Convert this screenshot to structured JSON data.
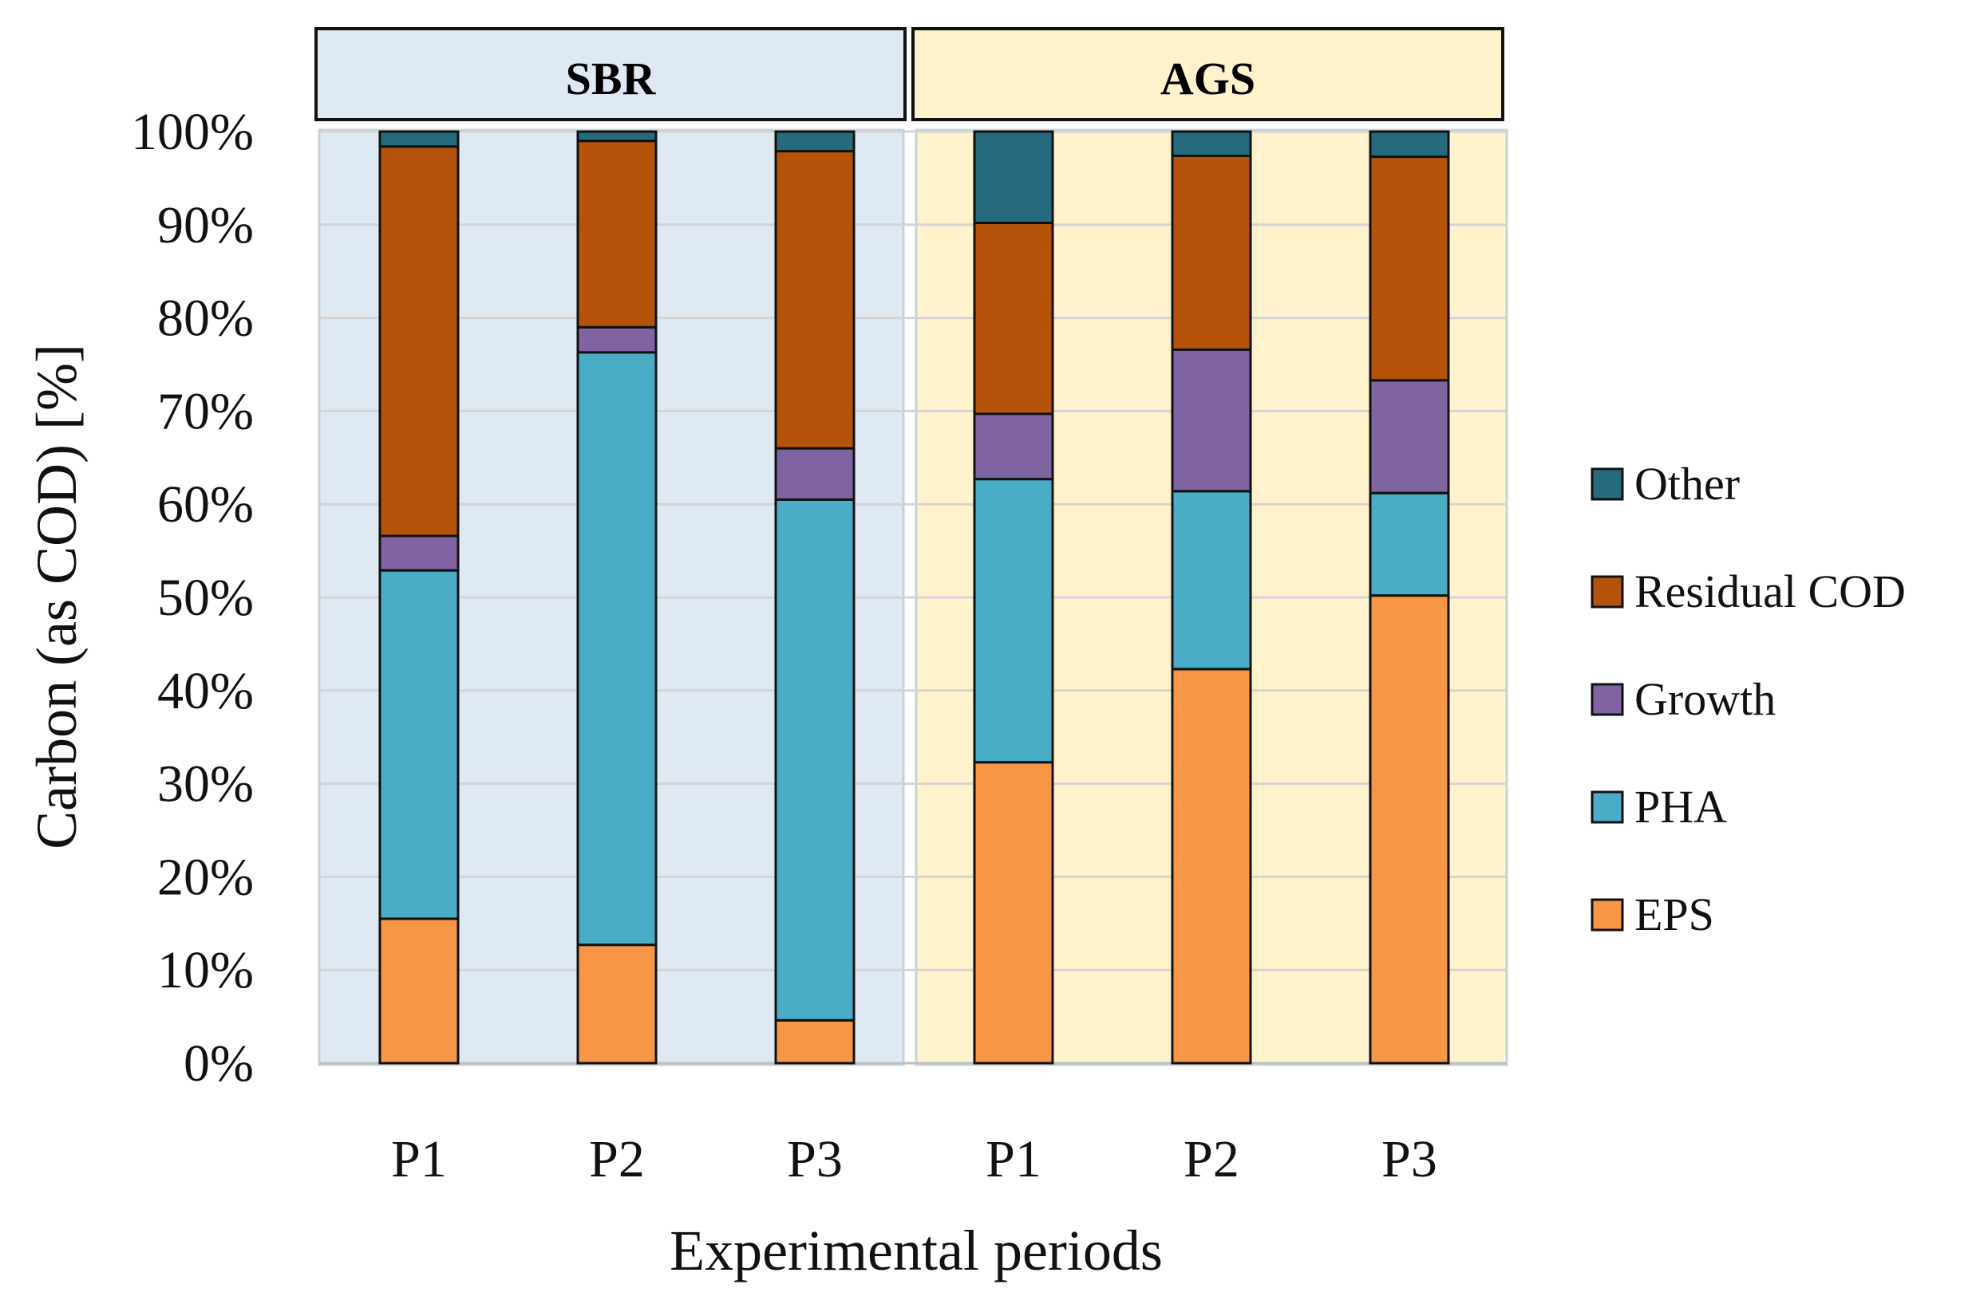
{
  "chart_data": {
    "type": "bar",
    "stacked": true,
    "title": "",
    "xlabel": "Experimental periods",
    "ylabel": "Carbon (as COD) [%]",
    "ylim": [
      0,
      100
    ],
    "yticks": [
      "0%",
      "10%",
      "20%",
      "30%",
      "40%",
      "50%",
      "60%",
      "70%",
      "80%",
      "90%",
      "100%"
    ],
    "grid": true,
    "legend_position": "right",
    "groups": [
      {
        "name": "SBR",
        "color": "#dfe9f4",
        "categories": [
          "P1",
          "P2",
          "P3"
        ]
      },
      {
        "name": "AGS",
        "color": "#fff2cc",
        "categories": [
          "P1",
          "P2",
          "P3"
        ]
      }
    ],
    "categories": [
      "P1",
      "P2",
      "P3",
      "P1",
      "P2",
      "P3"
    ],
    "series": [
      {
        "name": "EPS",
        "color": "#f79646",
        "values": [
          15.5,
          12.7,
          4.6,
          32.3,
          42.3,
          50.2
        ]
      },
      {
        "name": "PHA",
        "color": "#4bacc6",
        "values": [
          37.4,
          63.6,
          55.9,
          30.4,
          19.1,
          11.0
        ]
      },
      {
        "name": "Growth",
        "color": "#8064a2",
        "values": [
          3.7,
          2.7,
          5.5,
          7.0,
          15.2,
          12.1
        ]
      },
      {
        "name": "Residual COD",
        "color": "#b45309",
        "values": [
          41.8,
          20.0,
          31.9,
          20.5,
          20.8,
          24.0
        ]
      },
      {
        "name": "Other",
        "color": "#266a7d",
        "values": [
          1.6,
          1.0,
          2.1,
          9.8,
          2.6,
          2.7
        ]
      }
    ],
    "legend_order": [
      "Other",
      "Residual COD",
      "Growth",
      "PHA",
      "EPS"
    ]
  }
}
